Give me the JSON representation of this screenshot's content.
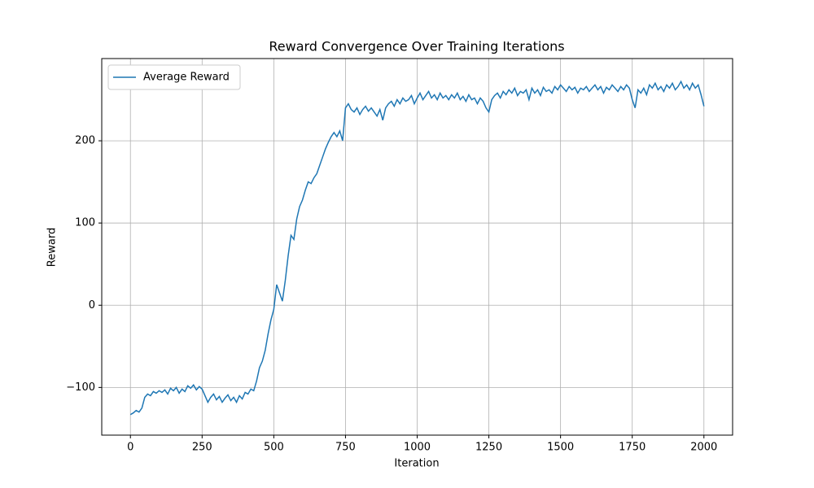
{
  "chart_data": {
    "type": "line",
    "title": "Reward Convergence Over Training Iterations",
    "x_label": "Iteration",
    "y_label": "Reward",
    "x": [
      0,
      10,
      20,
      30,
      40,
      50,
      60,
      70,
      80,
      90,
      100,
      110,
      120,
      130,
      140,
      150,
      160,
      170,
      180,
      190,
      200,
      210,
      220,
      230,
      240,
      250,
      260,
      270,
      280,
      290,
      300,
      310,
      320,
      330,
      340,
      350,
      360,
      370,
      380,
      390,
      400,
      410,
      420,
      430,
      440,
      450,
      460,
      470,
      480,
      490,
      500,
      510,
      520,
      530,
      540,
      550,
      560,
      570,
      580,
      590,
      600,
      610,
      620,
      630,
      640,
      650,
      660,
      670,
      680,
      690,
      700,
      710,
      720,
      730,
      740,
      750,
      760,
      770,
      780,
      790,
      800,
      810,
      820,
      830,
      840,
      850,
      860,
      870,
      880,
      890,
      900,
      910,
      920,
      930,
      940,
      950,
      960,
      970,
      980,
      990,
      1000,
      1010,
      1020,
      1030,
      1040,
      1050,
      1060,
      1070,
      1080,
      1090,
      1100,
      1110,
      1120,
      1130,
      1140,
      1150,
      1160,
      1170,
      1180,
      1190,
      1200,
      1210,
      1220,
      1230,
      1240,
      1250,
      1260,
      1270,
      1280,
      1290,
      1300,
      1310,
      1320,
      1330,
      1340,
      1350,
      1360,
      1370,
      1380,
      1390,
      1400,
      1410,
      1420,
      1430,
      1440,
      1450,
      1460,
      1470,
      1480,
      1490,
      1500,
      1510,
      1520,
      1530,
      1540,
      1550,
      1560,
      1570,
      1580,
      1590,
      1600,
      1610,
      1620,
      1630,
      1640,
      1650,
      1660,
      1670,
      1680,
      1690,
      1700,
      1710,
      1720,
      1730,
      1740,
      1750,
      1760,
      1770,
      1780,
      1790,
      1800,
      1810,
      1820,
      1830,
      1840,
      1850,
      1860,
      1870,
      1880,
      1890,
      1900,
      1910,
      1920,
      1930,
      1940,
      1950,
      1960,
      1970,
      1980,
      1990,
      2000
    ],
    "series": [
      {
        "name": "Average Reward",
        "color": "#1f77b4",
        "values": [
          -133,
          -131,
          -128,
          -130,
          -125,
          -112,
          -108,
          -110,
          -105,
          -107,
          -104,
          -106,
          -103,
          -108,
          -101,
          -104,
          -100,
          -107,
          -102,
          -105,
          -98,
          -101,
          -97,
          -103,
          -99,
          -102,
          -110,
          -118,
          -112,
          -108,
          -115,
          -111,
          -118,
          -113,
          -109,
          -116,
          -112,
          -118,
          -110,
          -114,
          -106,
          -108,
          -102,
          -104,
          -92,
          -76,
          -68,
          -55,
          -35,
          -18,
          -5,
          25,
          15,
          5,
          30,
          60,
          85,
          80,
          105,
          120,
          128,
          140,
          150,
          148,
          155,
          160,
          170,
          180,
          190,
          198,
          205,
          210,
          205,
          212,
          200,
          240,
          245,
          238,
          235,
          240,
          232,
          238,
          242,
          236,
          240,
          235,
          230,
          238,
          225,
          240,
          245,
          248,
          242,
          250,
          245,
          252,
          248,
          250,
          255,
          245,
          252,
          258,
          250,
          255,
          260,
          252,
          256,
          250,
          258,
          252,
          255,
          250,
          256,
          252,
          258,
          250,
          254,
          248,
          256,
          250,
          252,
          245,
          252,
          248,
          240,
          235,
          250,
          255,
          258,
          252,
          260,
          256,
          262,
          258,
          264,
          255,
          260,
          258,
          262,
          250,
          264,
          258,
          262,
          255,
          265,
          260,
          262,
          258,
          266,
          262,
          268,
          264,
          260,
          266,
          262,
          265,
          258,
          264,
          262,
          266,
          260,
          264,
          268,
          262,
          266,
          258,
          265,
          262,
          268,
          264,
          260,
          266,
          262,
          268,
          264,
          250,
          240,
          262,
          258,
          264,
          256,
          268,
          264,
          270,
          262,
          266,
          260,
          268,
          264,
          270,
          262,
          266,
          272,
          264,
          268,
          262,
          270,
          264,
          268,
          256,
          242
        ]
      }
    ],
    "xlim": [
      -100,
      2100
    ],
    "ylim": [
      -158,
      300
    ],
    "xticks": [
      0,
      250,
      500,
      750,
      1000,
      1250,
      1500,
      1750,
      2000
    ],
    "yticks": [
      {
        "value": -100,
        "label": "−100"
      },
      0,
      100,
      200
    ],
    "grid": true,
    "legend": "upper left"
  }
}
